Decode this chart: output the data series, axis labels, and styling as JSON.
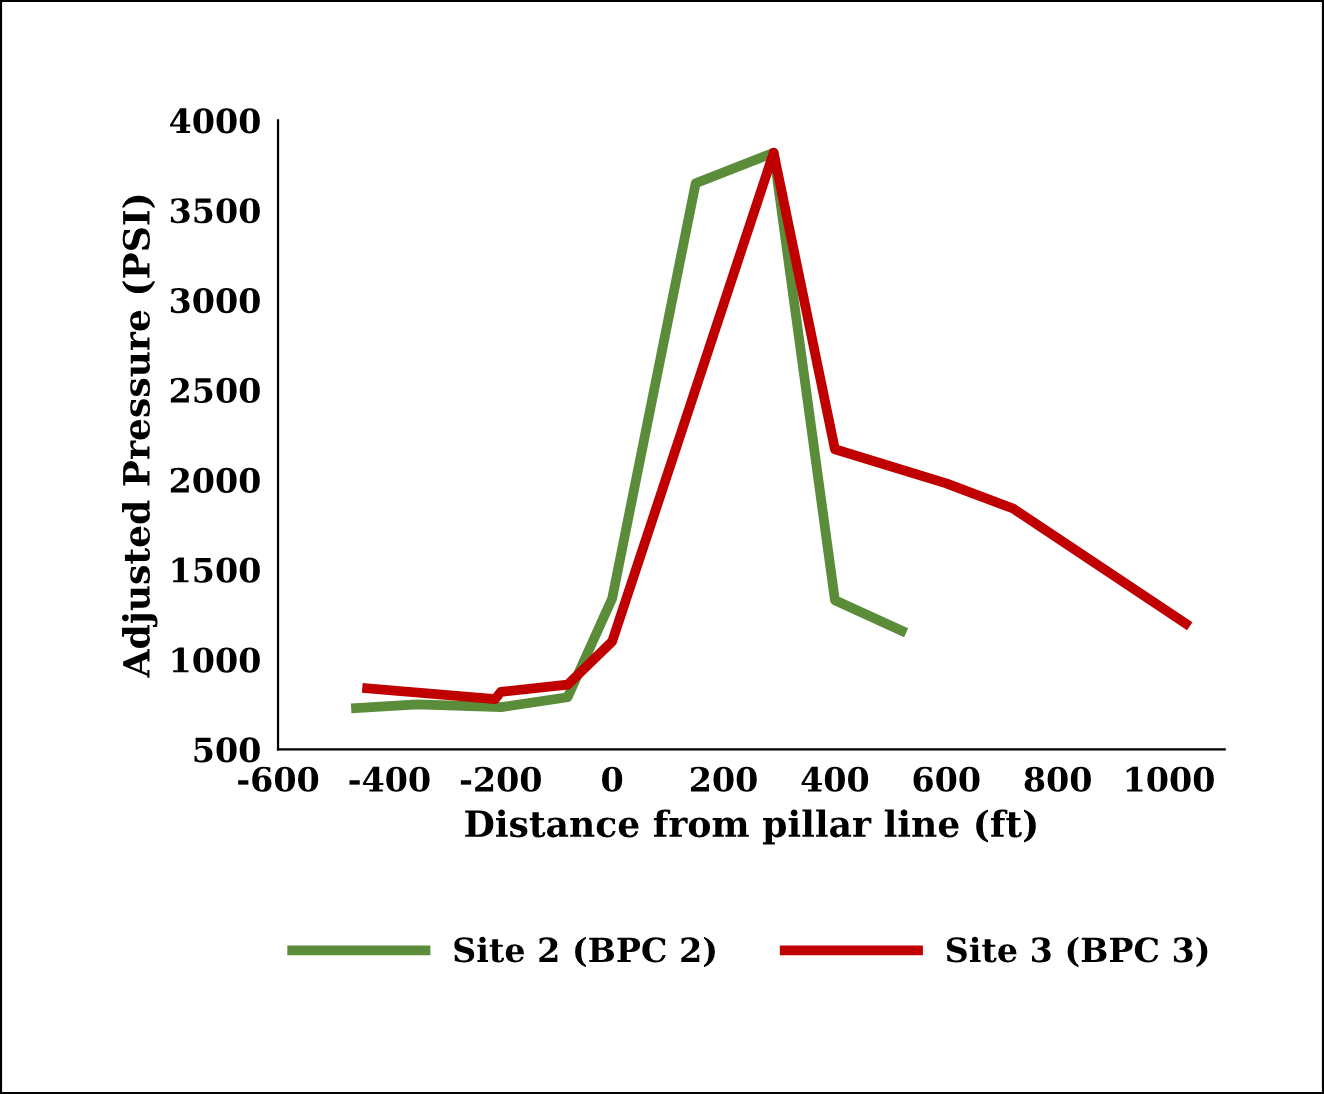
{
  "chart_data": {
    "type": "line",
    "xlabel": "Distance from pillar line (ft)",
    "ylabel": "Adjusted Pressure (PSI)",
    "xlim": [
      -600,
      1100
    ],
    "ylim": [
      500,
      4000
    ],
    "xticks": [
      -600,
      -400,
      -200,
      0,
      200,
      400,
      600,
      800,
      1000
    ],
    "yticks": [
      500,
      1000,
      1500,
      2000,
      2500,
      3000,
      3500,
      4000
    ],
    "grid": false,
    "legend": "bottom",
    "line_style": "solid",
    "marker": "none",
    "series": [
      {
        "name": "Site 2 (BPC 2)",
        "color": "#5b8c3a",
        "x": [
          -460,
          -350,
          -200,
          -80,
          0,
          150,
          290,
          400,
          520
        ],
        "values": [
          730,
          750,
          735,
          790,
          1340,
          3650,
          3820,
          1330,
          1160
        ]
      },
      {
        "name": "Site 3 (BPC 3)",
        "color": "#c00000",
        "x": [
          -440,
          -210,
          -200,
          -80,
          0,
          290,
          400,
          600,
          720,
          1030
        ],
        "values": [
          840,
          780,
          820,
          860,
          1100,
          3820,
          2170,
          1980,
          1840,
          1200
        ]
      }
    ]
  }
}
